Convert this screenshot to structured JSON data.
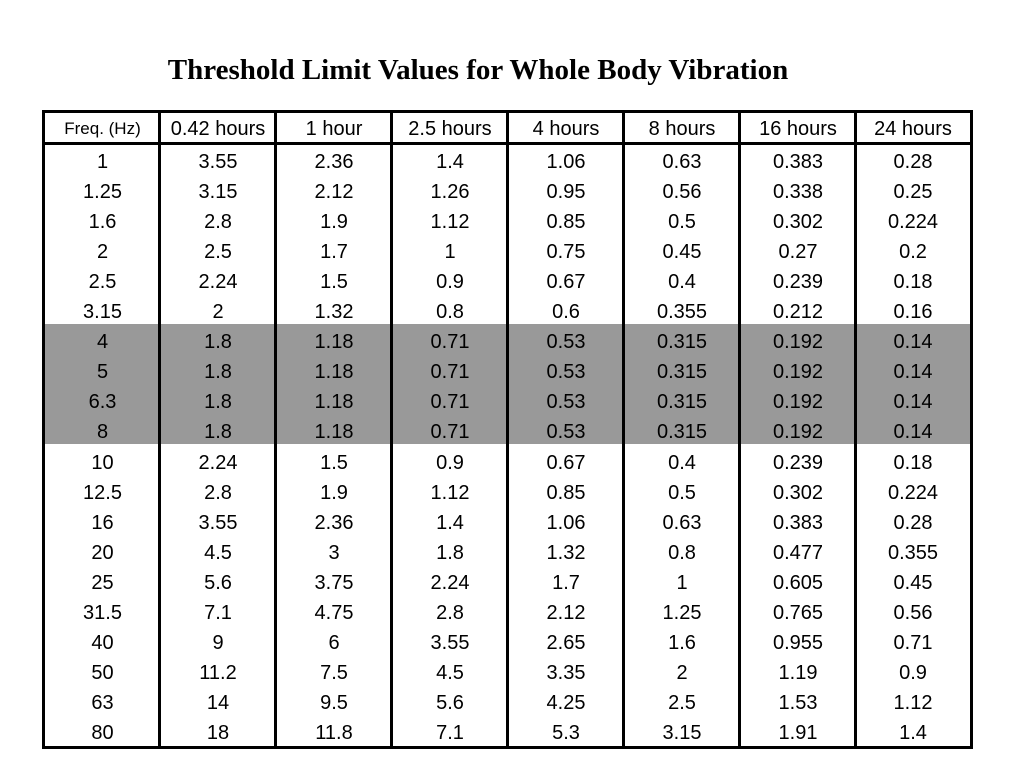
{
  "title": "Threshold Limit Values for Whole Body Vibration",
  "colors": {
    "highlight_band": "#999999",
    "border": "#000000",
    "background": "#ffffff"
  },
  "highlighted_rows": [
    6,
    7,
    8,
    9
  ],
  "table": {
    "headers": [
      "Freq. (Hz)",
      "0.42 hours",
      "1 hour",
      "2.5 hours",
      "4 hours",
      "8 hours",
      "16 hours",
      "24 hours"
    ],
    "rows": [
      [
        "1",
        "3.55",
        "2.36",
        "1.4",
        "1.06",
        "0.63",
        "0.383",
        "0.28"
      ],
      [
        "1.25",
        "3.15",
        "2.12",
        "1.26",
        "0.95",
        "0.56",
        "0.338",
        "0.25"
      ],
      [
        "1.6",
        "2.8",
        "1.9",
        "1.12",
        "0.85",
        "0.5",
        "0.302",
        "0.224"
      ],
      [
        "2",
        "2.5",
        "1.7",
        "1",
        "0.75",
        "0.45",
        "0.27",
        "0.2"
      ],
      [
        "2.5",
        "2.24",
        "1.5",
        "0.9",
        "0.67",
        "0.4",
        "0.239",
        "0.18"
      ],
      [
        "3.15",
        "2",
        "1.32",
        "0.8",
        "0.6",
        "0.355",
        "0.212",
        "0.16"
      ],
      [
        "4",
        "1.8",
        "1.18",
        "0.71",
        "0.53",
        "0.315",
        "0.192",
        "0.14"
      ],
      [
        "5",
        "1.8",
        "1.18",
        "0.71",
        "0.53",
        "0.315",
        "0.192",
        "0.14"
      ],
      [
        "6.3",
        "1.8",
        "1.18",
        "0.71",
        "0.53",
        "0.315",
        "0.192",
        "0.14"
      ],
      [
        "8",
        "1.8",
        "1.18",
        "0.71",
        "0.53",
        "0.315",
        "0.192",
        "0.14"
      ],
      [
        "10",
        "2.24",
        "1.5",
        "0.9",
        "0.67",
        "0.4",
        "0.239",
        "0.18"
      ],
      [
        "12.5",
        "2.8",
        "1.9",
        "1.12",
        "0.85",
        "0.5",
        "0.302",
        "0.224"
      ],
      [
        "16",
        "3.55",
        "2.36",
        "1.4",
        "1.06",
        "0.63",
        "0.383",
        "0.28"
      ],
      [
        "20",
        "4.5",
        "3",
        "1.8",
        "1.32",
        "0.8",
        "0.477",
        "0.355"
      ],
      [
        "25",
        "5.6",
        "3.75",
        "2.24",
        "1.7",
        "1",
        "0.605",
        "0.45"
      ],
      [
        "31.5",
        "7.1",
        "4.75",
        "2.8",
        "2.12",
        "1.25",
        "0.765",
        "0.56"
      ],
      [
        "40",
        "9",
        "6",
        "3.55",
        "2.65",
        "1.6",
        "0.955",
        "0.71"
      ],
      [
        "50",
        "11.2",
        "7.5",
        "4.5",
        "3.35",
        "2",
        "1.19",
        "0.9"
      ],
      [
        "63",
        "14",
        "9.5",
        "5.6",
        "4.25",
        "2.5",
        "1.53",
        "1.12"
      ],
      [
        "80",
        "18",
        "11.8",
        "7.1",
        "5.3",
        "3.15",
        "1.91",
        "1.4"
      ]
    ]
  }
}
